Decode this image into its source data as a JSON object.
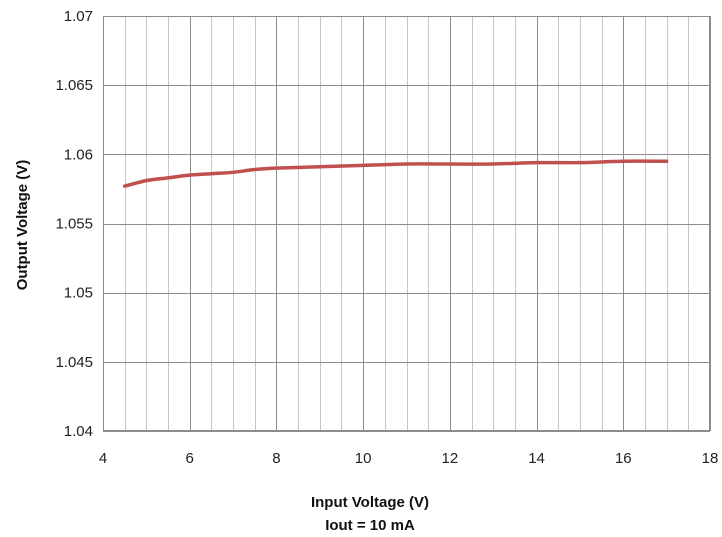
{
  "chart_data": {
    "type": "line",
    "xlabel": "Input Voltage (V)",
    "xlabel_line2": "Iout = 10 mA",
    "ylabel": "Output Voltage (V)",
    "xlim": [
      4,
      18
    ],
    "ylim": [
      1.04,
      1.07
    ],
    "x_ticks": [
      4,
      6,
      8,
      10,
      12,
      14,
      16,
      18
    ],
    "x_tick_labels": [
      "4",
      "6",
      "8",
      "10",
      "12",
      "14",
      "16",
      "18"
    ],
    "y_ticks": [
      1.04,
      1.045,
      1.05,
      1.055,
      1.06,
      1.065,
      1.07
    ],
    "y_tick_labels": [
      "1.04",
      "1.045",
      "1.05",
      "1.055",
      "1.06",
      "1.065",
      "1.07"
    ],
    "grid": true,
    "series": [
      {
        "color": "#c0504d",
        "x": [
          4.5,
          5,
          5.5,
          6,
          6.5,
          7,
          7.5,
          8,
          9,
          10,
          11,
          12,
          13,
          14,
          15,
          16,
          17
        ],
        "y": [
          1.0577,
          1.0581,
          1.0583,
          1.0585,
          1.0586,
          1.0587,
          1.0589,
          1.059,
          1.0591,
          1.0592,
          1.0593,
          1.0593,
          1.0593,
          1.0594,
          1.0594,
          1.0595,
          1.0595
        ]
      }
    ]
  }
}
